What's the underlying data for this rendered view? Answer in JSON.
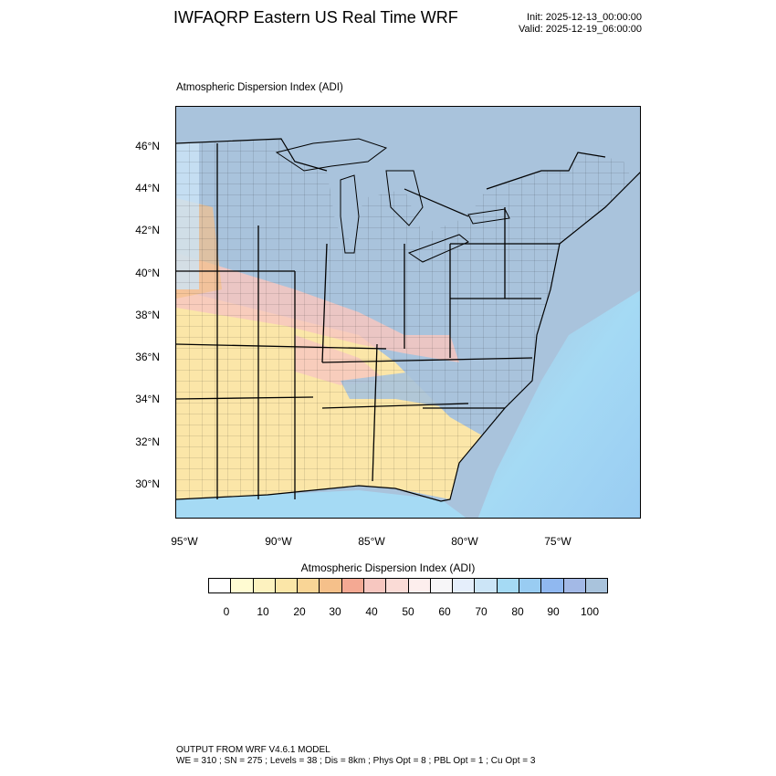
{
  "title": "IWFAQRP Eastern US Real Time WRF",
  "init": "Init: 2025-12-13_00:00:00",
  "valid": "Valid: 2025-12-19_06:00:00",
  "plot_title": "Atmospheric Dispersion Index   (ADI)",
  "lat_labels": [
    "46°N",
    "44°N",
    "42°N",
    "40°N",
    "38°N",
    "36°N",
    "34°N",
    "32°N",
    "30°N"
  ],
  "lon_labels": [
    "95°W",
    "90°W",
    "85°W",
    "80°W",
    "75°W"
  ],
  "colorbar": {
    "title": "Atmospheric Dispersion Index   (ADI)",
    "labels": [
      "0",
      "10",
      "20",
      "30",
      "40",
      "50",
      "60",
      "70",
      "80",
      "90",
      "100"
    ],
    "colors": [
      "#ffffff",
      "#fffbd2",
      "#fdf2bf",
      "#fbe6a8",
      "#f9d596",
      "#f5c08a",
      "#f4a993",
      "#f7c7c0",
      "#fadbd6",
      "#fdeeed",
      "#f7f6f8",
      "#e5eefb",
      "#cce5f7",
      "#a5daf4",
      "#99ccf2",
      "#90b8f0",
      "#a3b9e6",
      "#a9c3dc"
    ]
  },
  "colors": {
    "water": "#a9c3dc",
    "ocean_light": "#a5daf4",
    "land_blue": "#a9c3dc",
    "land_yellow": "#fbe6a8",
    "land_pink": "#f7c7c0",
    "land_orange": "#f5c08a"
  },
  "footer": {
    "line1": "OUTPUT FROM WRF V4.6.1 MODEL",
    "line2": "WE = 310 ; SN = 275 ; Levels = 38 ; Dis = 8km ; Phys Opt = 8 ; PBL Opt = 1 ; Cu Opt = 3"
  }
}
